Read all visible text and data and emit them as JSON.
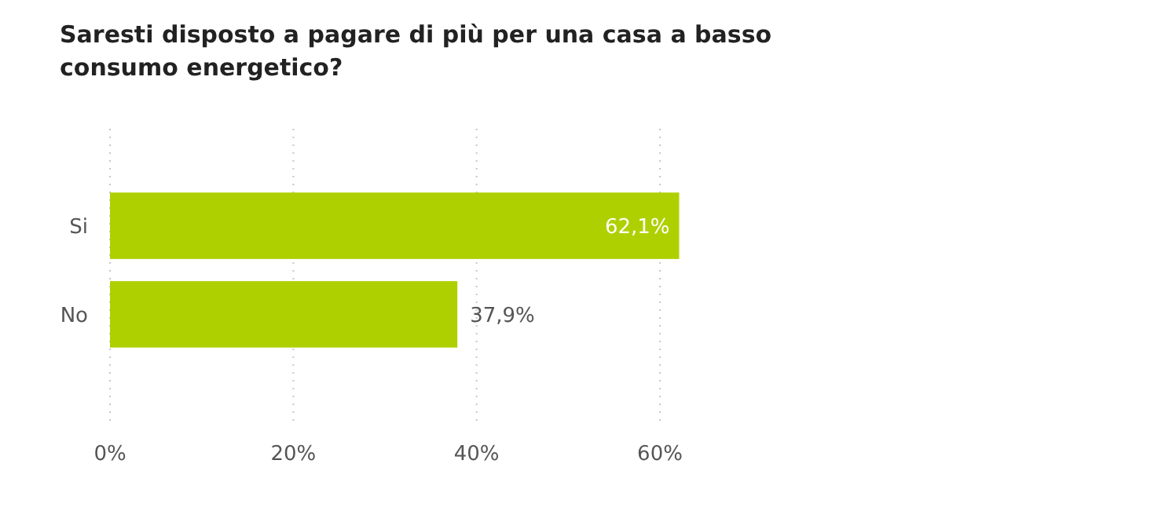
{
  "chart_data": {
    "type": "bar",
    "orientation": "horizontal",
    "title": "Saresti disposto a pagare di più per una casa a basso consumo energetico?",
    "categories": [
      "Si",
      "No"
    ],
    "values": [
      62.1,
      37.9
    ],
    "value_labels": [
      "62,1%",
      "37,9%"
    ],
    "color": "#afd000",
    "xlim": [
      0,
      62.1
    ],
    "xticks": [
      {
        "value": 0,
        "label": "0%"
      },
      {
        "value": 20,
        "label": "20%"
      },
      {
        "value": 40,
        "label": "40%"
      },
      {
        "value": 60,
        "label": "60%"
      }
    ],
    "grid": "x"
  }
}
